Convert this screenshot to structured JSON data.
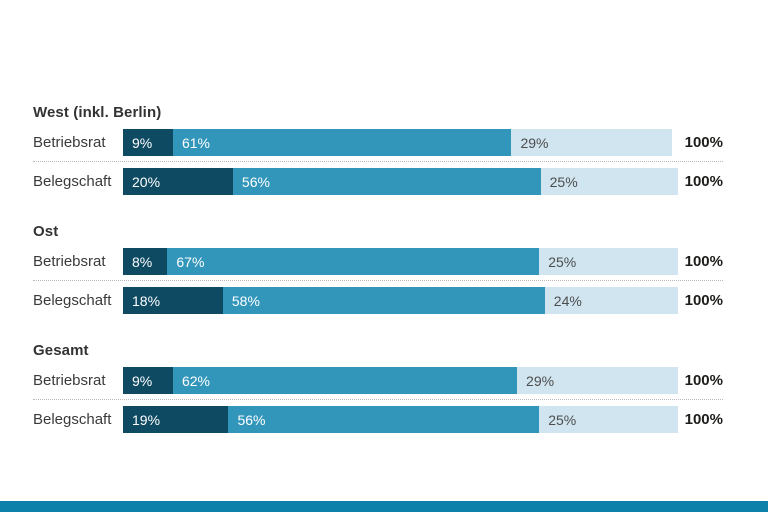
{
  "chart_data": {
    "type": "bar",
    "orientation": "horizontal-stacked",
    "unit": "%",
    "axis_max": 100,
    "grid": false,
    "legend_position": "none",
    "series_colors": [
      "#0f4a63",
      "#3296bb",
      "#d0e5ef"
    ],
    "groups": [
      {
        "label": "West (inkl. Berlin)",
        "rows": [
          {
            "label": "Betriebsrat",
            "segments": [
              {
                "value": 9,
                "label": "9%"
              },
              {
                "value": 61,
                "label": "61%"
              },
              {
                "value": 29,
                "label": "29%"
              }
            ],
            "total": "100%"
          },
          {
            "label": "Belegschaft",
            "segments": [
              {
                "value": 20,
                "label": "20%"
              },
              {
                "value": 56,
                "label": "56%"
              },
              {
                "value": 25,
                "label": "25%"
              }
            ],
            "total": "100%"
          }
        ]
      },
      {
        "label": "Ost",
        "rows": [
          {
            "label": "Betriebsrat",
            "segments": [
              {
                "value": 8,
                "label": "8%"
              },
              {
                "value": 67,
                "label": "67%"
              },
              {
                "value": 25,
                "label": "25%"
              }
            ],
            "total": "100%"
          },
          {
            "label": "Belegschaft",
            "segments": [
              {
                "value": 18,
                "label": "18%"
              },
              {
                "value": 58,
                "label": "58%"
              },
              {
                "value": 24,
                "label": "24%"
              }
            ],
            "total": "100%"
          }
        ]
      },
      {
        "label": "Gesamt",
        "rows": [
          {
            "label": "Betriebsrat",
            "segments": [
              {
                "value": 9,
                "label": "9%"
              },
              {
                "value": 62,
                "label": "62%"
              },
              {
                "value": 29,
                "label": "29%"
              }
            ],
            "total": "100%"
          },
          {
            "label": "Belegschaft",
            "segments": [
              {
                "value": 19,
                "label": "19%"
              },
              {
                "value": 56,
                "label": "56%"
              },
              {
                "value": 25,
                "label": "25%"
              }
            ],
            "total": "100%"
          }
        ]
      }
    ]
  },
  "footer": {
    "accent_bar_color": "#0e81ab"
  }
}
